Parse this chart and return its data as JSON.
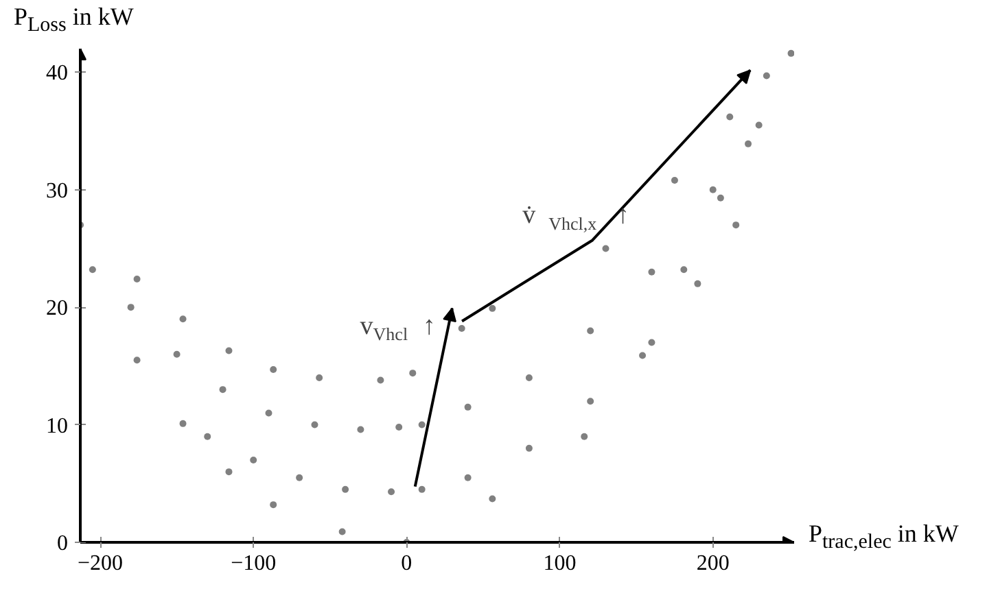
{
  "chart_data": {
    "type": "scatter",
    "xlabel": "P$_{trac,elec}$ in kW",
    "ylabel": "P$_{Loss}$ in kW",
    "xlim": [
      -213,
      253
    ],
    "ylim": [
      0,
      42
    ],
    "xticks": [
      {
        "value": -200,
        "label": "−200"
      },
      {
        "value": -100,
        "label": "−100"
      },
      0,
      100,
      200
    ],
    "yticks": [
      0,
      10,
      20,
      30,
      40
    ],
    "grid": false,
    "marker": "circle",
    "series": [
      {
        "color": "#808080",
        "x": [
          -213,
          -176,
          -146,
          -116,
          -87,
          -57,
          -17,
          -180,
          -150,
          -120,
          -90,
          -60,
          -30,
          -5,
          -130,
          -100,
          -70,
          -40,
          -10,
          -205,
          -176,
          -146,
          -116,
          -87,
          -42,
          0,
          4,
          36,
          56,
          130,
          175,
          211,
          235,
          251,
          10,
          40,
          80,
          120,
          160,
          200,
          230,
          10,
          40,
          80,
          120,
          160,
          190,
          215,
          56,
          116,
          154,
          181,
          205,
          223
        ],
        "values": [
          27,
          22.4,
          19,
          16.3,
          14.7,
          14,
          13.8,
          20,
          16,
          13,
          11,
          10,
          9.6,
          9.8,
          9,
          7,
          5.5,
          4.5,
          4.3,
          23.2,
          15.5,
          10.1,
          6,
          3.2,
          0.9,
          0,
          14.4,
          18.2,
          19.9,
          25,
          30.8,
          36.2,
          39.7,
          41.6,
          10,
          11.5,
          14,
          18,
          23,
          30,
          35.5,
          4.5,
          5.5,
          8,
          12,
          17,
          22,
          27,
          3.7,
          9,
          15.9,
          23.2,
          29.3,
          33.9
        ]
      }
    ],
    "annotations": [
      "v$_{Vhcl}$ ↑",
      "v̇$_{Vhcl,x}$ ↑"
    ]
  }
}
